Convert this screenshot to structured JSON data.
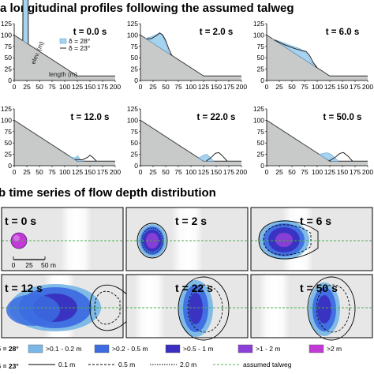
{
  "section_a": {
    "title": "a  longitudinal profiles following the assumed talweg"
  },
  "section_b": {
    "title": "b  time series of flow depth distribution"
  },
  "chart_data": [
    {
      "type": "area",
      "panel": "a",
      "x_ticks": [
        0,
        25,
        50,
        75,
        100,
        125,
        150,
        175,
        200
      ],
      "y_ticks": [
        0,
        25,
        50,
        75,
        100,
        125
      ],
      "xlim": [
        0,
        200
      ],
      "ylim": [
        0,
        125
      ],
      "xlabel": "length (m)",
      "ylabel": "elev. (m)",
      "legend": [
        "δ = 28°",
        "δ = 23°"
      ],
      "terrain": {
        "x": [
          0,
          125,
          200
        ],
        "y": [
          100,
          10,
          10
        ]
      },
      "panels": [
        {
          "title": "t = 0.0 s",
          "s28": {
            "x": [
              17,
              17.5,
              27.5,
              28
            ],
            "h": [
              0,
              120,
              120,
              0
            ]
          },
          "s23": {
            "x": [
              17,
              17.5,
              27.5,
              28
            ],
            "h": [
              0,
              120,
              120,
              0
            ]
          }
        },
        {
          "title": "t = 2.0 s",
          "s28": {
            "x": [
              10,
              20,
              30,
              37,
              42,
              47,
              52,
              58
            ],
            "h": [
              0,
              10,
              22,
              30,
              32,
              26,
              12,
              0
            ]
          },
          "s23": {
            "x": [
              12,
              22,
              32,
              38,
              44,
              50,
              56,
              62
            ],
            "h": [
              0,
              8,
              22,
              32,
              32,
              24,
              10,
              0
            ]
          }
        },
        {
          "title": "t = 6.0 s",
          "s28": {
            "x": [
              12,
              30,
              50,
              65,
              75,
              82,
              88,
              95
            ],
            "h": [
              0,
              6,
              12,
              17,
              18,
              14,
              6,
              0
            ]
          },
          "s23": {
            "x": [
              15,
              35,
              55,
              70,
              78,
              85,
              92,
              100
            ],
            "h": [
              0,
              4,
              10,
              16,
              20,
              16,
              6,
              0
            ]
          }
        },
        {
          "title": "t = 12.0 s",
          "s28": {
            "x": [
              110,
              118,
              122,
              126,
              130,
              136
            ],
            "h": [
              0,
              2,
              6,
              12,
              5,
              0
            ]
          },
          "s23": {
            "x": [
              120,
              135,
              145,
              150,
              155,
              163
            ],
            "h": [
              0,
              3,
              8,
              13,
              9,
              0
            ]
          }
        },
        {
          "title": "t = 22.0 s",
          "s28": {
            "x": [
              114,
              120,
              126,
              132,
              138,
              145
            ],
            "h": [
              0,
              6,
              14,
              15,
              8,
              0
            ]
          },
          "s23": {
            "x": [
              130,
              140,
              148,
              155,
              162,
              172
            ],
            "h": [
              0,
              8,
              17,
              19,
              12,
              0
            ]
          }
        },
        {
          "title": "t = 50.0 s",
          "s28": {
            "x": [
              104,
              112,
              120,
              128,
              134,
              142
            ],
            "h": [
              0,
              8,
              15,
              15,
              8,
              0
            ]
          },
          "s23": {
            "x": [
              124,
              135,
              145,
              152,
              160,
              170
            ],
            "h": [
              0,
              8,
              17,
              19,
              12,
              0
            ]
          }
        }
      ]
    },
    {
      "type": "heatmap",
      "panel": "b",
      "scale_bar": {
        "label_0": "0",
        "label_25": "25",
        "label_50": "50 m"
      },
      "panels": [
        {
          "title": "t = 0 s"
        },
        {
          "title": "t = 2 s"
        },
        {
          "title": "t = 6 s"
        },
        {
          "title": "t = 12 s"
        },
        {
          "title": "t = 22 s"
        },
        {
          "title": "t = 50 s"
        }
      ],
      "legend": {
        "row1_label": "δ = 28°",
        "row2_label": "δ = 23°",
        "classes": [
          {
            "label": ">0.1 - 0.2 m",
            "color": "#7ab7e6"
          },
          {
            "label": ">0.2 - 0.5 m",
            "color": "#3c6ce0"
          },
          {
            "label": ">0.5 - 1 m",
            "color": "#3a2fc0"
          },
          {
            "label": ">1 - 2 m",
            "color": "#8a3fd6"
          },
          {
            "label": ">2 m",
            "color": "#c23ad6"
          }
        ],
        "lines": [
          {
            "label": "0.1 m",
            "style": "solid"
          },
          {
            "label": "0.5 m",
            "style": "dashed"
          },
          {
            "label": "2.0 m",
            "style": "dotted"
          },
          {
            "label": "assumed talweg",
            "style": "green-dashed"
          }
        ]
      }
    }
  ],
  "colors": {
    "terrain": "#c8c9c9",
    "flow28": "#a6d3ef",
    "flow28_stroke": "#6aa7d6",
    "flow23": "#222222",
    "talweg": "#4caf50",
    "map_bg": "#e7e7e7",
    "map_bright": "#ffffff"
  }
}
